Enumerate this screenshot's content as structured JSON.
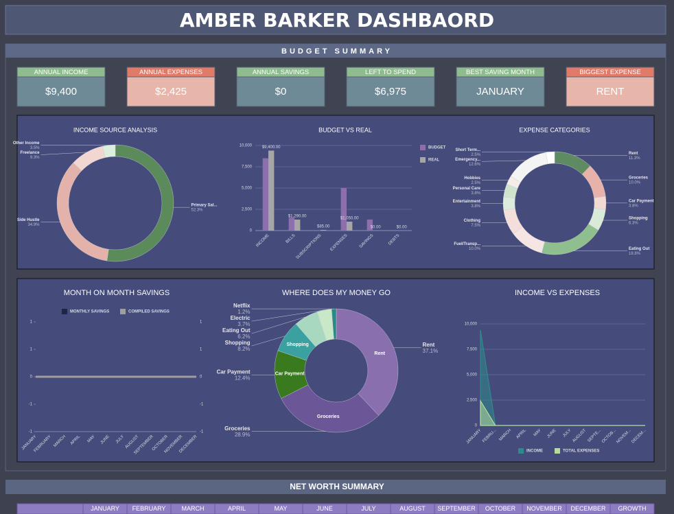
{
  "header": {
    "title": "AMBER BARKER DASHBAORD"
  },
  "budget_summary": {
    "title": "BUDGET SUMMARY",
    "cards": [
      {
        "label": "ANNUAL INCOME",
        "value": "$9,400"
      },
      {
        "label": "ANNUAL EXPENSES",
        "value": "$2,425"
      },
      {
        "label": "ANNUAL SAVINGS",
        "value": "$0"
      },
      {
        "label": "LEFT TO SPEND",
        "value": "$6,975"
      },
      {
        "label": "BEST SAVING MONTH",
        "value": "JANUARY"
      },
      {
        "label": "BIGGEST EXPENSE",
        "value": "RENT"
      }
    ]
  },
  "chart_data": [
    {
      "type": "pie",
      "title": "INCOME SOURCE ANALYSIS",
      "categories": [
        "Primary Sal...",
        "Side Hustle",
        "Freelance",
        "Other Income"
      ],
      "values": [
        52.3,
        34.9,
        9.3,
        3.5
      ],
      "value_labels": [
        "52.3%",
        "34.9%",
        "9.3%",
        "3.5%"
      ],
      "colors": [
        "#5b8a5b",
        "#e3b3ab",
        "#f2d6d1",
        "#dcefdc"
      ]
    },
    {
      "type": "bar",
      "title": "BUDGET VS REAL",
      "categories": [
        "INCOME",
        "BILLS",
        "SUBSCRIPTIONS",
        "EXPENSES",
        "SAVINGS",
        "DEBTS"
      ],
      "series": [
        {
          "name": "BUDGET",
          "color": "#8e6fae",
          "values": [
            8500,
            1500,
            0,
            5000,
            1300,
            0
          ]
        },
        {
          "name": "REAL",
          "color": "#a6a6a6",
          "values": [
            9400,
            1290,
            85,
            1050,
            0,
            0
          ],
          "value_labels": [
            "$9,400.00",
            "$1,290.00",
            "$85.00",
            "$1,050.00",
            "$0.00",
            "$0.00"
          ]
        }
      ],
      "ylim": [
        0,
        10000
      ],
      "yticks": [
        0,
        {
          "value": 2500,
          "label": "2,500"
        },
        {
          "value": 5000,
          "label": "5,000"
        },
        {
          "value": 7500,
          "label": "7,500"
        },
        {
          "value": 10000,
          "label": "10,000"
        }
      ],
      "grid": true
    },
    {
      "type": "pie",
      "title": "EXPENSE CATEGORIES",
      "categories": [
        "Rent",
        "Groceries",
        "Car Payment",
        "Shopping",
        "Eating Out",
        "Fuel/Transp...",
        "Clothing",
        "Entertainment",
        "Personal Care",
        "Hobbies",
        "Emergency...",
        "Short Term..."
      ],
      "values": [
        11.3,
        10.0,
        3.8,
        6.3,
        18.8,
        10.0,
        7.5,
        3.8,
        3.8,
        2.5,
        12.6,
        2.5
      ],
      "value_labels": [
        "11.3%",
        "10.0%",
        "3.8%",
        "6.3%",
        "18.8%",
        "10.0%",
        "7.5%",
        "3.8%",
        "3.8%",
        "2.5%",
        "12.6%",
        "2.5%"
      ],
      "colors": [
        "#5e8b62",
        "#e6b2a9",
        "#f3d9d4",
        "#d8ead8",
        "#8fbe8f",
        "#f5e6e4",
        "#f3dedb",
        "#dcebdc",
        "#cfe3cf",
        "#f7ecea",
        "#f4f4f4",
        "#ffffff"
      ]
    },
    {
      "type": "line",
      "title": "MONTH ON MONTH SAVINGS",
      "categories": [
        "JANUARY",
        "FEBRUARY",
        "MARCH",
        "APRIL",
        "MAY",
        "JUNE",
        "JULY",
        "AUGUST",
        "SEPTEMBER",
        "OCTOBER",
        "NOVEMBER",
        "DECEMBER"
      ],
      "series": [
        {
          "name": "MONTHLY SAVINGS",
          "color": "#1f2547",
          "values": [
            0,
            0,
            0,
            0,
            0,
            0,
            0,
            0,
            0,
            0,
            0,
            0
          ]
        },
        {
          "name": "COMPILED SAVINGS",
          "color": "#9e9e9e",
          "values": [
            0,
            0,
            0,
            0,
            0,
            0,
            0,
            0,
            0,
            0,
            0,
            0
          ]
        }
      ],
      "ylim": [
        -1,
        1
      ],
      "yticks": [
        -1,
        {
          "value": -0.5,
          "label": "-1"
        },
        0,
        {
          "value": 0.5,
          "label": "1"
        },
        1
      ],
      "grid": false
    },
    {
      "type": "pie",
      "title": "WHERE DOES MY MONEY GO",
      "categories": [
        "Rent",
        "Groceries",
        "Car Payment",
        "Shopping",
        "Eating Out",
        "Electric",
        "Netflix"
      ],
      "values": [
        37.1,
        28.9,
        12.4,
        8.2,
        6.2,
        3.7,
        1.2
      ],
      "value_labels": [
        "37.1%",
        "28.9%",
        "12.4%",
        "8.2%",
        "6.2%",
        "3.7%",
        "1.2%"
      ],
      "colors": [
        "#8a6fae",
        "#6b5797",
        "#3a7a1e",
        "#3aa0a0",
        "#a8d8c0",
        "#c8e8c8",
        "#2a8a8a"
      ]
    },
    {
      "type": "area",
      "title": "INCOME VS EXPENSES",
      "categories": [
        "JANUARY",
        "FEBRU...",
        "MARCH",
        "APRIL",
        "MAY",
        "JUNE",
        "JULY",
        "AUGUST",
        "SEPTE...",
        "OCTOB...",
        "NOVEM...",
        "DECEM..."
      ],
      "series": [
        {
          "name": "INCOME",
          "color": "#2e8b8b",
          "values": [
            9400,
            0,
            0,
            0,
            0,
            0,
            0,
            0,
            0,
            0,
            0,
            0
          ]
        },
        {
          "name": "TOTAL EXPENSES",
          "color": "#b5dc9c",
          "values": [
            2425,
            0,
            0,
            0,
            0,
            0,
            0,
            0,
            0,
            0,
            0,
            0
          ]
        }
      ],
      "ylim": [
        0,
        10000
      ],
      "yticks": [
        0,
        {
          "value": 2500,
          "label": "2,500"
        },
        {
          "value": 5000,
          "label": "5,000"
        },
        {
          "value": 7500,
          "label": "7,500"
        },
        {
          "value": 10000,
          "label": "10,000"
        }
      ],
      "grid": true
    }
  ],
  "net_worth": {
    "title": "NET WORTH SUMMARY",
    "columns": [
      "JANUARY",
      "FEBRUARY",
      "MARCH",
      "APRIL",
      "MAY",
      "JUNE",
      "JULY",
      "AUGUST",
      "SEPTEMBER",
      "OCTOBER",
      "NOVEMBER",
      "DECEMBER",
      "GROWTH"
    ]
  }
}
